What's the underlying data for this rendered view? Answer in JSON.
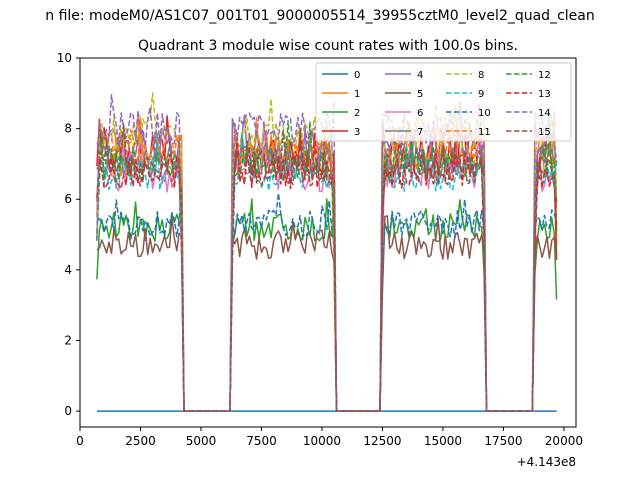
{
  "figure": {
    "suptitle": "n file: modeM0/AS1C07_001T01_9000005514_39955cztM0_level2_quad_clean",
    "offset_label": "+4.143e8"
  },
  "chart_data": {
    "type": "line",
    "title": "Quadrant 3 module wise count rates with 100.0s bins.",
    "xlabel": "",
    "ylabel": "",
    "xlim": [
      0,
      20500
    ],
    "ylim": [
      -0.45,
      10.0
    ],
    "x_offset": 414300000,
    "xticks": [
      0,
      2500,
      5000,
      7500,
      10000,
      12500,
      15000,
      17500,
      20000
    ],
    "yticks": [
      0,
      2,
      4,
      6,
      8,
      10
    ],
    "grid": false,
    "legend_position": "top-right",
    "legend_columns": 4,
    "segments": [
      [
        700,
        4200
      ],
      [
        6300,
        10500
      ],
      [
        12500,
        16700
      ],
      [
        18800,
        19700
      ]
    ],
    "series": [
      {
        "name": "0",
        "color": "#1f77b4",
        "dash": "solid",
        "level": 0.0,
        "spread": 0.0
      },
      {
        "name": "1",
        "color": "#ff7f0e",
        "dash": "solid",
        "level": 7.2,
        "spread": 0.6
      },
      {
        "name": "2",
        "color": "#2ca02c",
        "dash": "solid",
        "level": 5.2,
        "spread": 0.4
      },
      {
        "name": "3",
        "color": "#d62728",
        "dash": "solid",
        "level": 7.3,
        "spread": 0.6
      },
      {
        "name": "4",
        "color": "#9467bd",
        "dash": "solid",
        "level": 7.4,
        "spread": 0.6
      },
      {
        "name": "5",
        "color": "#8c564b",
        "dash": "solid",
        "level": 4.7,
        "spread": 0.4
      },
      {
        "name": "6",
        "color": "#e377c2",
        "dash": "solid",
        "level": 6.8,
        "spread": 0.6
      },
      {
        "name": "7",
        "color": "#7f7f7f",
        "dash": "solid",
        "level": 7.1,
        "spread": 0.5
      },
      {
        "name": "8",
        "color": "#bcbd22",
        "dash": "dashed",
        "level": 7.9,
        "spread": 0.5
      },
      {
        "name": "9",
        "color": "#17becf",
        "dash": "dashed",
        "level": 6.7,
        "spread": 0.5
      },
      {
        "name": "10",
        "color": "#1f77b4",
        "dash": "dashed",
        "level": 5.3,
        "spread": 0.4
      },
      {
        "name": "11",
        "color": "#ff7f0e",
        "dash": "dashed",
        "level": 7.5,
        "spread": 0.5
      },
      {
        "name": "12",
        "color": "#2ca02c",
        "dash": "dashed",
        "level": 7.0,
        "spread": 0.5
      },
      {
        "name": "13",
        "color": "#d62728",
        "dash": "dashed",
        "level": 6.8,
        "spread": 0.5
      },
      {
        "name": "14",
        "color": "#9467bd",
        "dash": "dashed",
        "level": 8.0,
        "spread": 0.5
      },
      {
        "name": "15",
        "color": "#8c564b",
        "dash": "dashed",
        "level": 6.9,
        "spread": 0.5
      }
    ]
  }
}
